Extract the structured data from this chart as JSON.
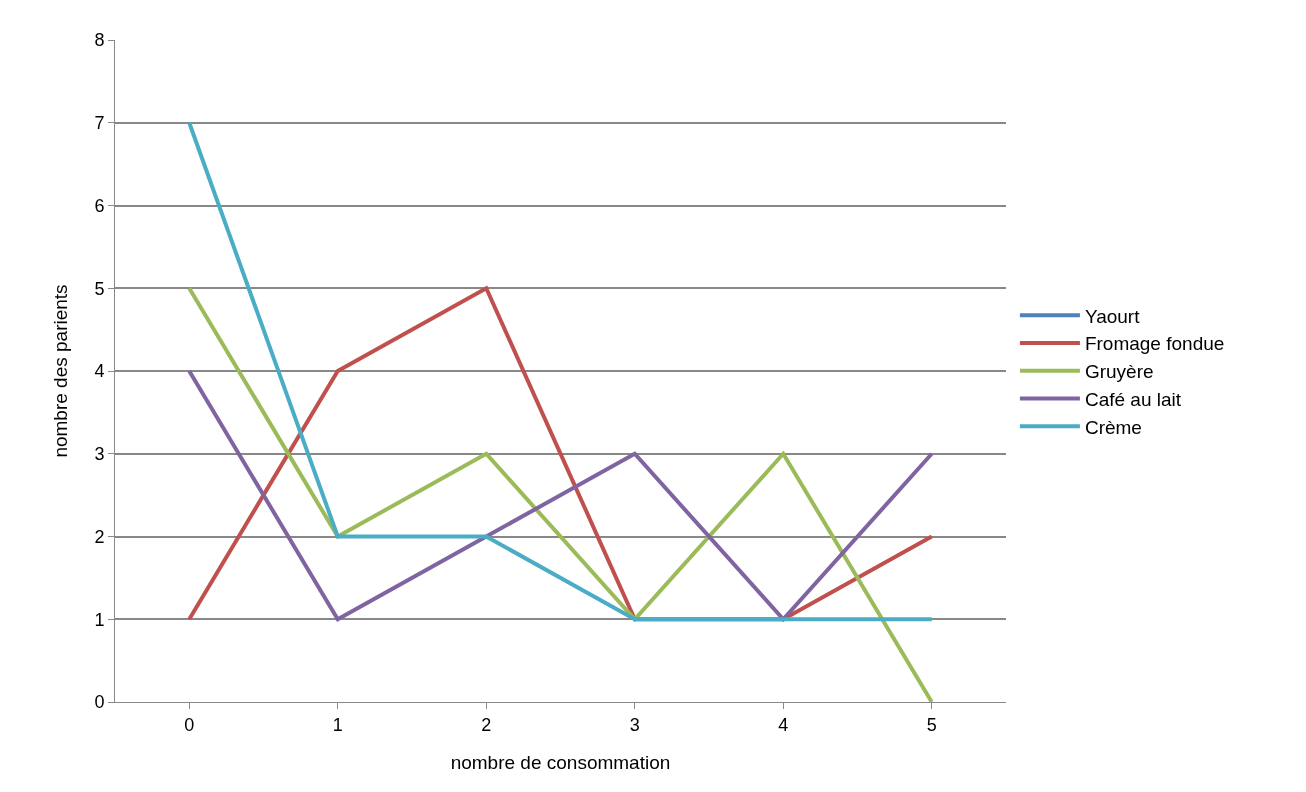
{
  "chart_data": {
    "type": "line",
    "xlabel": "nombre de consommation",
    "ylabel": "nombre des parients",
    "categories": [
      "0",
      "1",
      "2",
      "3",
      "4",
      "5"
    ],
    "series": [
      {
        "name": "Yaourt",
        "color": "#4f81bd",
        "values": [
          null,
          null,
          null,
          null,
          null,
          null
        ]
      },
      {
        "name": "Fromage fondue",
        "color": "#c0504d",
        "values": [
          1,
          4,
          5,
          1,
          1,
          2
        ]
      },
      {
        "name": "Gruyère",
        "color": "#9bbb59",
        "values": [
          5,
          2,
          3,
          1,
          3,
          0
        ]
      },
      {
        "name": "Café au lait",
        "color": "#8064a2",
        "values": [
          4,
          1,
          2,
          3,
          1,
          3
        ]
      },
      {
        "name": "Crème",
        "color": "#4bacc6",
        "values": [
          7,
          2,
          2,
          1,
          1,
          1
        ]
      }
    ],
    "ylim": [
      0,
      8
    ],
    "yticks": [
      0,
      1,
      2,
      3,
      4,
      5,
      6,
      7,
      8
    ],
    "grid": "y",
    "legend": "right",
    "marker": "none",
    "line_style": "solid"
  }
}
